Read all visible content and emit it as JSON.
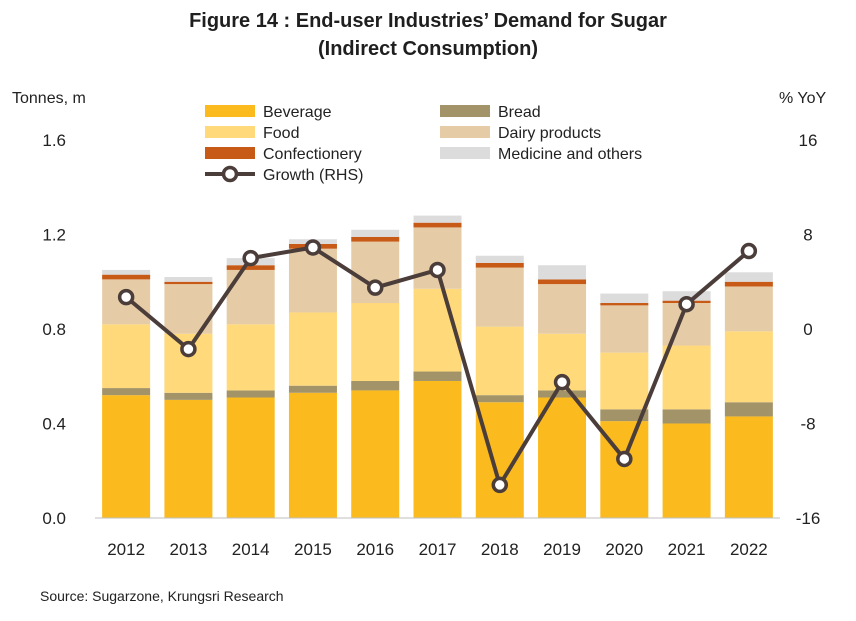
{
  "title_line1": "Figure 14 : End-user Industries’ Demand for Sugar",
  "title_line2": "(Indirect Consumption)",
  "y_left_unit": "Tonnes, m",
  "y_right_unit": "% YoY",
  "source": "Source: Sugarzone, Krungsri Research",
  "colors": {
    "Beverage": "#fbbb1f",
    "Food": "#ffd97a",
    "Confectionery": "#c65a16",
    "Bread": "#a39368",
    "Dairy products": "#e6cca6",
    "Medicine and others": "#dcdcdc",
    "Growth (RHS)": "#4b3d3a"
  },
  "chart_data": {
    "type": "bar",
    "stacked": true,
    "categories": [
      "2012",
      "2013",
      "2014",
      "2015",
      "2016",
      "2017",
      "2018",
      "2019",
      "2020",
      "2021",
      "2022"
    ],
    "series": [
      {
        "name": "Beverage",
        "values": [
          0.52,
          0.5,
          0.51,
          0.53,
          0.54,
          0.58,
          0.49,
          0.51,
          0.41,
          0.4,
          0.43
        ]
      },
      {
        "name": "Bread",
        "values": [
          0.03,
          0.03,
          0.03,
          0.03,
          0.04,
          0.04,
          0.03,
          0.03,
          0.05,
          0.06,
          0.06
        ]
      },
      {
        "name": "Food",
        "values": [
          0.27,
          0.25,
          0.28,
          0.31,
          0.33,
          0.35,
          0.29,
          0.24,
          0.24,
          0.27,
          0.3
        ]
      },
      {
        "name": "Dairy products",
        "values": [
          0.19,
          0.21,
          0.23,
          0.27,
          0.26,
          0.26,
          0.25,
          0.21,
          0.2,
          0.18,
          0.19
        ]
      },
      {
        "name": "Confectionery",
        "values": [
          0.02,
          0.01,
          0.02,
          0.02,
          0.02,
          0.02,
          0.02,
          0.02,
          0.01,
          0.01,
          0.02
        ]
      },
      {
        "name": "Medicine and others",
        "values": [
          0.02,
          0.02,
          0.03,
          0.02,
          0.03,
          0.03,
          0.03,
          0.06,
          0.04,
          0.04,
          0.04
        ]
      }
    ],
    "line": {
      "name": "Growth (RHS)",
      "axis": "right",
      "values": [
        2.7,
        -1.7,
        6.0,
        6.9,
        3.5,
        5.0,
        -13.2,
        -4.5,
        -11.0,
        2.1,
        6.6
      ]
    },
    "ylim_left": [
      0,
      1.6
    ],
    "yticks_left": [
      "0.0",
      "0.4",
      "0.8",
      "1.2",
      "1.6"
    ],
    "ylim_right": [
      -16,
      16
    ],
    "yticks_right": [
      "-16",
      "-8",
      "0",
      "8",
      "16"
    ],
    "legend_order": [
      "Beverage",
      "Food",
      "Confectionery",
      "Growth (RHS)",
      "Bread",
      "Dairy products",
      "Medicine and others"
    ],
    "legend": "top",
    "grid": false
  }
}
